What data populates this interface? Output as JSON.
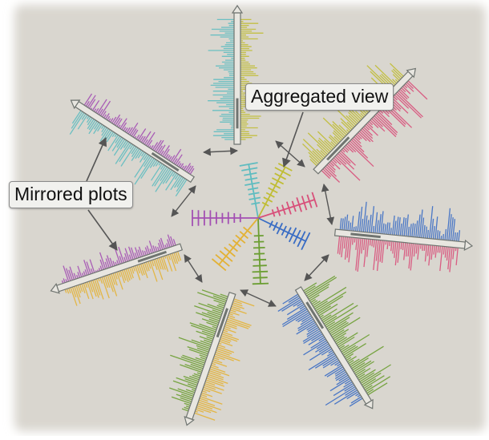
{
  "labels": {
    "aggregated_view": "Aggregated view",
    "mirrored_plots": "Mirrored plots"
  },
  "colors": {
    "background": "#d9d6cf",
    "glyph_outline": "#6f7470",
    "arrow": "#555555",
    "series": [
      "#5fbcc0",
      "#c0bd35",
      "#d8507a",
      "#3a6dc4",
      "#6b9e32",
      "#e3b236",
      "#a350b3"
    ]
  },
  "series_order": [
    "cyan",
    "olive",
    "pink",
    "blue",
    "green",
    "yellow",
    "purple"
  ]
}
